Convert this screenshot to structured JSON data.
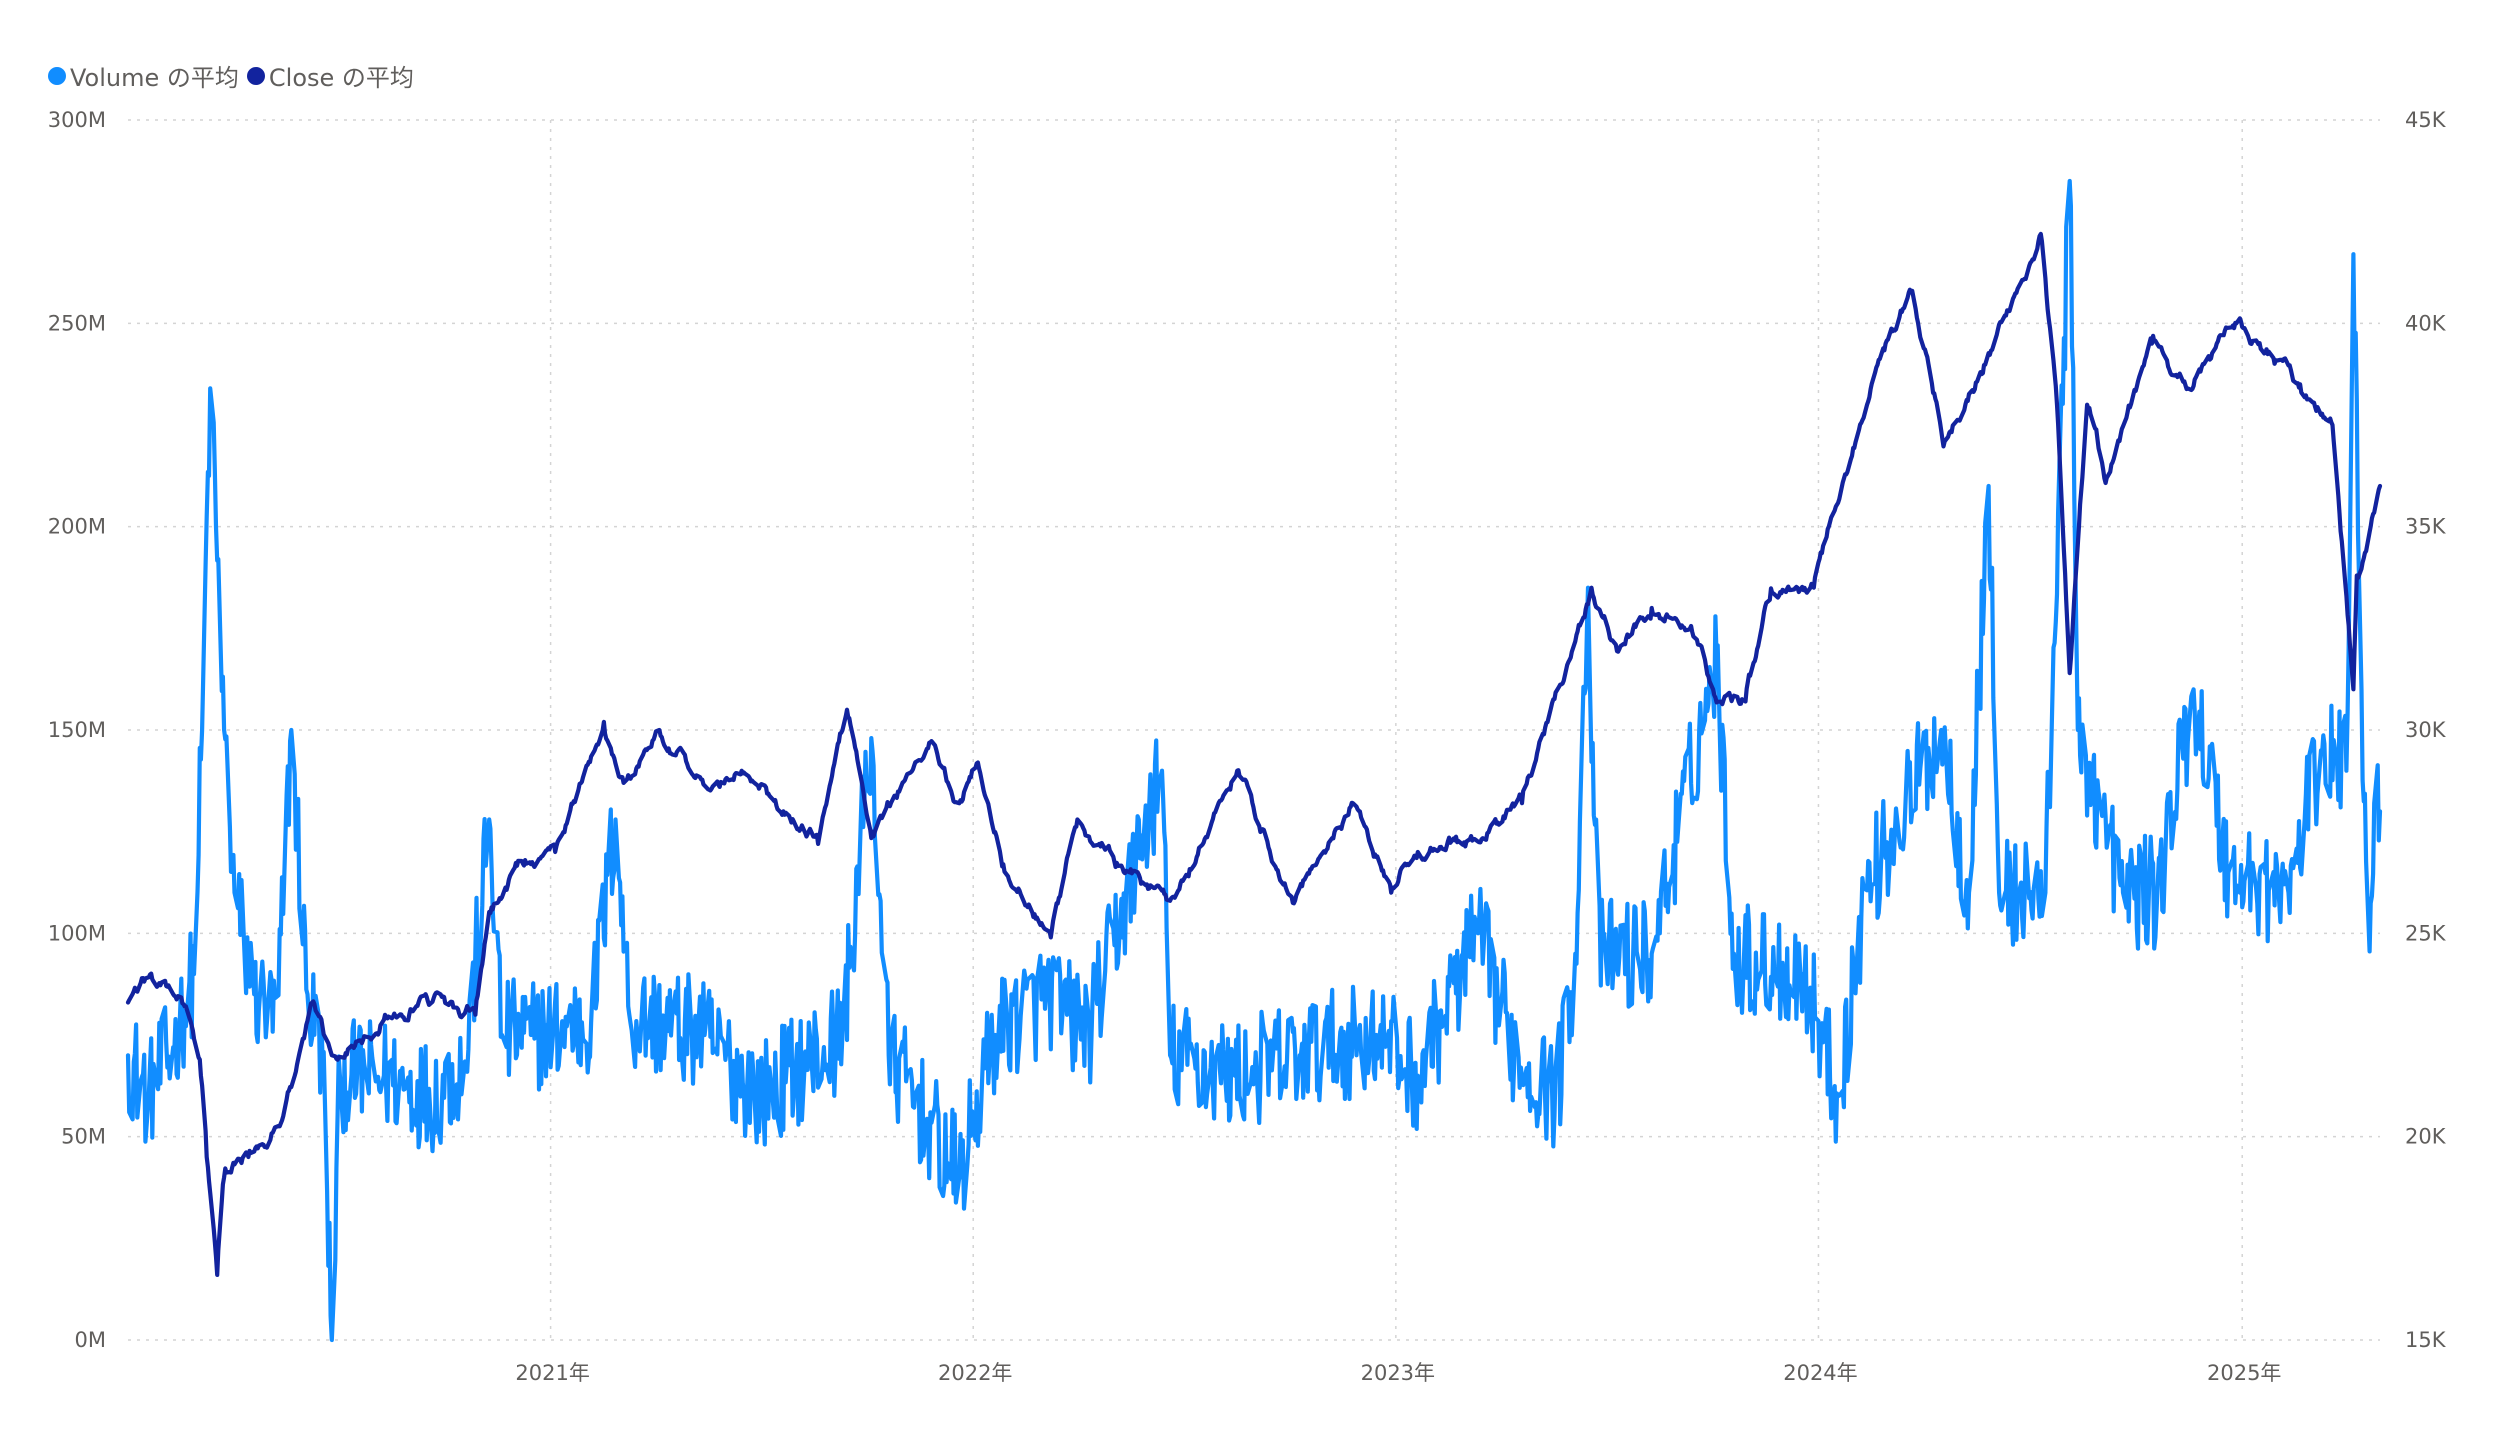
{
  "legend": {
    "items": [
      {
        "label": "Volume の平均",
        "color": "#118dff"
      },
      {
        "label": "Close の平均",
        "color": "#12239e"
      }
    ]
  },
  "chart_data": {
    "type": "line",
    "x_type": "date",
    "x_range": [
      "2020-01-02",
      "2025-04-30"
    ],
    "x_ticks": [
      {
        "date": "2021-01-01",
        "label": "2021年"
      },
      {
        "date": "2022-01-01",
        "label": "2022年"
      },
      {
        "date": "2023-01-01",
        "label": "2023年"
      },
      {
        "date": "2024-01-01",
        "label": "2024年"
      },
      {
        "date": "2025-01-01",
        "label": "2025年"
      }
    ],
    "y_left": {
      "min": 0,
      "max": 300000000,
      "ticks": [
        0,
        50000000,
        100000000,
        150000000,
        200000000,
        250000000,
        300000000
      ],
      "tick_labels": [
        "0M",
        "50M",
        "100M",
        "150M",
        "200M",
        "250M",
        "300M"
      ]
    },
    "y_right": {
      "min": 15000,
      "max": 45000,
      "ticks": [
        15000,
        20000,
        25000,
        30000,
        35000,
        40000,
        45000
      ],
      "tick_labels": [
        "15K",
        "20K",
        "25K",
        "30K",
        "35K",
        "40K",
        "45K"
      ]
    },
    "grid": true,
    "legend_position": "top-left",
    "series": [
      {
        "name": "Volume の平均",
        "axis": "left",
        "color": "#118dff",
        "noise": 14000000,
        "anchors": [
          [
            "2020-01-02",
            70000000
          ],
          [
            "2020-01-20",
            60000000
          ],
          [
            "2020-02-10",
            72000000
          ],
          [
            "2020-02-28",
            90000000
          ],
          [
            "2020-03-06",
            150000000
          ],
          [
            "2020-03-13",
            234000000
          ],
          [
            "2020-03-18",
            200000000
          ],
          [
            "2020-03-25",
            150000000
          ],
          [
            "2020-04-03",
            110000000
          ],
          [
            "2020-04-20",
            85000000
          ],
          [
            "2020-05-10",
            78000000
          ],
          [
            "2020-05-22",
            150000000
          ],
          [
            "2020-06-05",
            85000000
          ],
          [
            "2020-06-18",
            70000000
          ],
          [
            "2020-06-26",
            0
          ],
          [
            "2020-07-03",
            65000000
          ],
          [
            "2020-08-10",
            65000000
          ],
          [
            "2020-09-20",
            60000000
          ],
          [
            "2020-10-20",
            68000000
          ],
          [
            "2020-11-09",
            128000000
          ],
          [
            "2020-11-20",
            75000000
          ],
          [
            "2020-12-15",
            75000000
          ],
          [
            "2021-02-05",
            78000000
          ],
          [
            "2021-02-26",
            128000000
          ],
          [
            "2021-03-10",
            80000000
          ],
          [
            "2021-05-14",
            75000000
          ],
          [
            "2021-07-01",
            60000000
          ],
          [
            "2021-09-10",
            75000000
          ],
          [
            "2021-10-05",
            148000000
          ],
          [
            "2021-10-20",
            70000000
          ],
          [
            "2021-12-20",
            40000000
          ],
          [
            "2022-01-20",
            75000000
          ],
          [
            "2022-03-08",
            85000000
          ],
          [
            "2022-04-10",
            75000000
          ],
          [
            "2022-06-13",
            140000000
          ],
          [
            "2022-06-20",
            70000000
          ],
          [
            "2022-08-15",
            65000000
          ],
          [
            "2022-10-10",
            70000000
          ],
          [
            "2022-12-15",
            75000000
          ],
          [
            "2023-01-20",
            65000000
          ],
          [
            "2023-03-13",
            100000000
          ],
          [
            "2023-04-15",
            70000000
          ],
          [
            "2023-05-20",
            60000000
          ],
          [
            "2023-06-05",
            95000000
          ],
          [
            "2023-06-16",
            185000000
          ],
          [
            "2023-06-25",
            95000000
          ],
          [
            "2023-08-10",
            95000000
          ],
          [
            "2023-10-05",
            168000000
          ],
          [
            "2023-10-20",
            95000000
          ],
          [
            "2023-12-20",
            90000000
          ],
          [
            "2024-01-18",
            60000000
          ],
          [
            "2024-02-10",
            110000000
          ],
          [
            "2024-04-16",
            150000000
          ],
          [
            "2024-05-10",
            110000000
          ],
          [
            "2024-05-27",
            210000000
          ],
          [
            "2024-06-05",
            110000000
          ],
          [
            "2024-07-15",
            110000000
          ],
          [
            "2024-08-05",
            285000000
          ],
          [
            "2024-08-12",
            150000000
          ],
          [
            "2024-09-20",
            110000000
          ],
          [
            "2024-10-20",
            110000000
          ],
          [
            "2024-11-20",
            160000000
          ],
          [
            "2024-12-20",
            115000000
          ],
          [
            "2025-02-10",
            110000000
          ],
          [
            "2025-03-10",
            145000000
          ],
          [
            "2025-04-01",
            140000000
          ],
          [
            "2025-04-07",
            267000000
          ],
          [
            "2025-04-14",
            160000000
          ],
          [
            "2025-04-20",
            100000000
          ],
          [
            "2025-04-25",
            132000000
          ],
          [
            "2025-04-30",
            130000000
          ]
        ]
      },
      {
        "name": "Close の平均",
        "axis": "right",
        "color": "#12239e",
        "noise": 220,
        "anchors": [
          [
            "2020-01-02",
            23300
          ],
          [
            "2020-01-15",
            23900
          ],
          [
            "2020-02-10",
            23500
          ],
          [
            "2020-02-20",
            23200
          ],
          [
            "2020-03-05",
            21500
          ],
          [
            "2020-03-10",
            19500
          ],
          [
            "2020-03-19",
            16600
          ],
          [
            "2020-03-25",
            19000
          ],
          [
            "2020-04-15",
            19500
          ],
          [
            "2020-05-15",
            20500
          ],
          [
            "2020-06-09",
            23300
          ],
          [
            "2020-06-26",
            22000
          ],
          [
            "2020-08-15",
            23000
          ],
          [
            "2020-09-20",
            23300
          ],
          [
            "2020-10-28",
            23000
          ],
          [
            "2020-11-10",
            25500
          ],
          [
            "2020-12-10",
            26800
          ],
          [
            "2021-01-05",
            27000
          ],
          [
            "2021-02-16",
            30200
          ],
          [
            "2021-03-05",
            28700
          ],
          [
            "2021-04-05",
            30000
          ],
          [
            "2021-05-15",
            28500
          ],
          [
            "2021-06-15",
            29000
          ],
          [
            "2021-08-20",
            27200
          ],
          [
            "2021-09-14",
            30500
          ],
          [
            "2021-10-06",
            27500
          ],
          [
            "2021-11-25",
            29700
          ],
          [
            "2021-12-20",
            28200
          ],
          [
            "2022-01-05",
            29200
          ],
          [
            "2022-01-27",
            26700
          ],
          [
            "2022-03-09",
            24900
          ],
          [
            "2022-04-01",
            27800
          ],
          [
            "2022-05-10",
            26600
          ],
          [
            "2022-06-20",
            25800
          ],
          [
            "2022-08-17",
            29000
          ],
          [
            "2022-10-03",
            25900
          ],
          [
            "2022-11-25",
            28200
          ],
          [
            "2022-12-28",
            26000
          ],
          [
            "2023-01-20",
            27000
          ],
          [
            "2023-03-20",
            27300
          ],
          [
            "2023-04-20",
            28200
          ],
          [
            "2023-05-20",
            30800
          ],
          [
            "2023-06-19",
            33500
          ],
          [
            "2023-07-10",
            32100
          ],
          [
            "2023-08-10",
            33000
          ],
          [
            "2023-09-15",
            32300
          ],
          [
            "2023-10-04",
            30800
          ],
          [
            "2023-10-30",
            30700
          ],
          [
            "2023-11-20",
            33200
          ],
          [
            "2023-12-28",
            33500
          ],
          [
            "2024-01-15",
            35400
          ],
          [
            "2024-02-22",
            39100
          ],
          [
            "2024-03-22",
            40800
          ],
          [
            "2024-04-19",
            37100
          ],
          [
            "2024-05-20",
            38800
          ],
          [
            "2024-07-11",
            42200
          ],
          [
            "2024-07-25",
            38000
          ],
          [
            "2024-08-05",
            31400
          ],
          [
            "2024-08-20",
            38000
          ],
          [
            "2024-09-06",
            36200
          ],
          [
            "2024-10-15",
            39500
          ],
          [
            "2024-11-15",
            38400
          ],
          [
            "2024-12-27",
            40000
          ],
          [
            "2025-02-20",
            38500
          ],
          [
            "2025-03-20",
            37500
          ],
          [
            "2025-04-07",
            31000
          ],
          [
            "2025-04-10",
            33800
          ],
          [
            "2025-04-18",
            34400
          ],
          [
            "2025-04-30",
            36000
          ]
        ]
      }
    ]
  }
}
